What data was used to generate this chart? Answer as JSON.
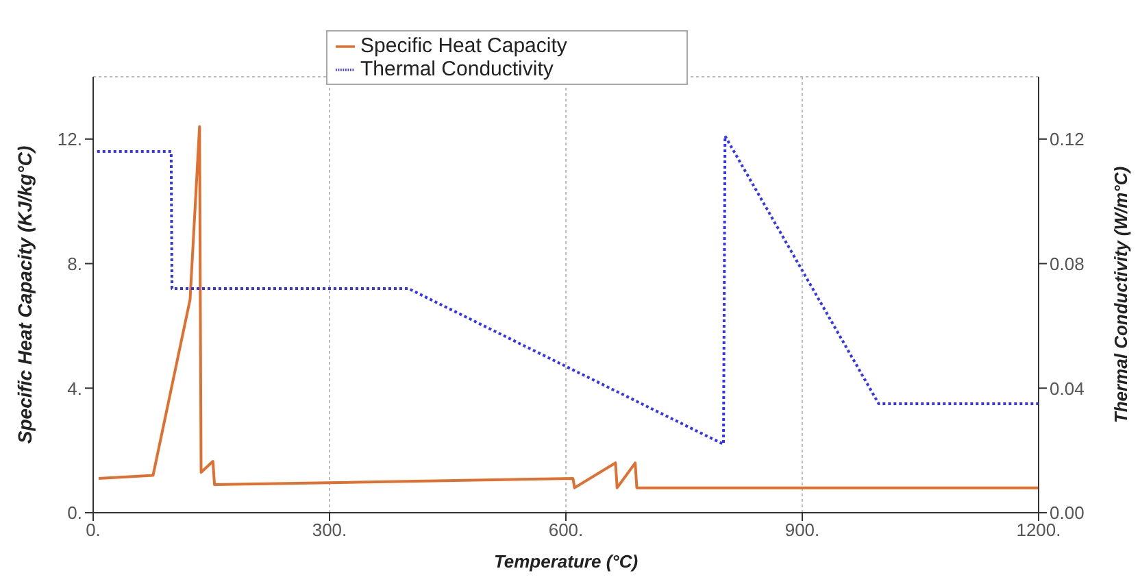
{
  "chart_data": {
    "type": "line",
    "xlabel": "Temperature (°C)",
    "ylabel": "Specific Heat Capacity (KJ/kg°C)",
    "y2label": "Thermal Conductivity (W/m°C)",
    "xlim": [
      0,
      1200
    ],
    "xticks": [
      {
        "value": 0,
        "label": "0."
      },
      {
        "value": 300,
        "label": "300."
      },
      {
        "value": 600,
        "label": "600."
      },
      {
        "value": 900,
        "label": "900."
      },
      {
        "value": 1200,
        "label": "1200."
      }
    ],
    "ylim": [
      0,
      14
    ],
    "yticks": [
      {
        "value": 0,
        "label": "0."
      },
      {
        "value": 4,
        "label": "4."
      },
      {
        "value": 8,
        "label": "8."
      },
      {
        "value": 12,
        "label": "12."
      }
    ],
    "y2lim": [
      0,
      0.14
    ],
    "y2ticks": [
      {
        "value": 0,
        "label": "0.00"
      },
      {
        "value": 0.04,
        "label": "0.04"
      },
      {
        "value": 0.08,
        "label": "0.08"
      },
      {
        "value": 0.12,
        "label": "0.12"
      }
    ],
    "grid": true,
    "legend": "top",
    "marker": "none",
    "series": [
      {
        "name": "Specific Heat Capacity",
        "color": "#e07030",
        "line_style": "solid",
        "x": [
          7,
          76,
          123,
          135,
          137,
          152,
          154,
          609,
          611,
          663,
          665,
          688,
          690,
          1200
        ],
        "values": [
          1.1,
          1.2,
          6.85,
          12.4,
          1.3,
          1.65,
          0.9,
          1.1,
          0.8,
          1.6,
          0.8,
          1.6,
          0.8,
          0.8
        ]
      },
      {
        "name": "Thermal Conductivity",
        "color": "#3333ff",
        "line_style": "dotted",
        "axis": "y2",
        "x": [
          5,
          99,
          100,
          400,
          800,
          802,
          997,
          1200
        ],
        "values": [
          0.116,
          0.116,
          0.072,
          0.072,
          0.022,
          0.121,
          0.035,
          0.035
        ]
      }
    ]
  }
}
